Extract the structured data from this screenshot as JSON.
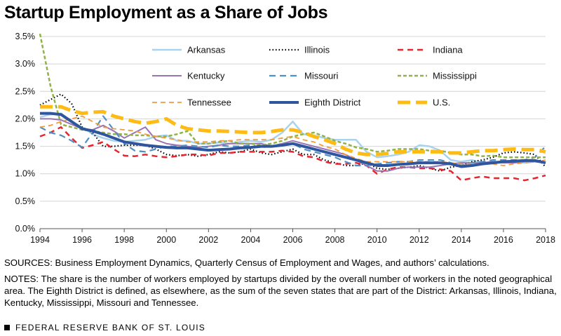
{
  "title": "Startup Employment as a Share of Jobs",
  "sources": "SOURCES: Business Employment Dynamics, Quarterly Census of Employment and Wages, and authors’ calculations.",
  "notes": "NOTES: The share is the number of workers employed by startups divided by the overall number of workers in the noted geographical area. The Eighth District is defined, as elsewhere, as the sum of the seven states that are part of the District: Arkansas, Illinois, Indiana, Kentucky, Mississippi, Missouri and Tennessee.",
  "footer": "FEDERAL RESERVE BANK OF ST. LOUIS",
  "chart_data": {
    "type": "line",
    "title": "Startup Employment as a Share of Jobs",
    "xlim": [
      1994,
      2018
    ],
    "ylim": [
      0,
      3.5
    ],
    "x_ticks": [
      "1994",
      "1996",
      "1998",
      "2000",
      "2002",
      "2004",
      "2006",
      "2008",
      "2010",
      "2012",
      "2014",
      "2016",
      "2018"
    ],
    "y_ticks": [
      "0.0%",
      "0.5%",
      "1.0%",
      "1.5%",
      "2.0%",
      "2.5%",
      "3.0%",
      "3.5%"
    ],
    "legend_position": "top, inside plot, 3 columns",
    "grid": "horizontal",
    "x": [
      1994,
      1994.5,
      1995,
      1995.5,
      1996,
      1996.5,
      1997,
      1997.5,
      1998,
      1998.5,
      1999,
      1999.5,
      2000,
      2000.5,
      2001,
      2001.5,
      2002,
      2002.5,
      2003,
      2003.5,
      2004,
      2004.5,
      2005,
      2005.5,
      2006,
      2006.5,
      2007,
      2007.5,
      2008,
      2008.5,
      2009,
      2009.5,
      2010,
      2010.5,
      2011,
      2011.5,
      2012,
      2012.5,
      2013,
      2013.5,
      2014,
      2014.5,
      2015,
      2015.5,
      2016,
      2016.5,
      2017,
      2017.5,
      2018
    ],
    "series": [
      {
        "name": "Arkansas",
        "color": "#a9d2ec",
        "dash": "solid",
        "width": 2.5,
        "values": [
          2.03,
          2.08,
          2.1,
          1.95,
          1.85,
          1.72,
          1.65,
          1.6,
          1.58,
          1.6,
          1.62,
          1.68,
          1.7,
          1.6,
          1.6,
          1.55,
          1.55,
          1.57,
          1.55,
          1.58,
          1.6,
          1.58,
          1.62,
          1.75,
          1.95,
          1.72,
          1.7,
          1.65,
          1.62,
          1.62,
          1.62,
          1.4,
          1.3,
          1.32,
          1.35,
          1.4,
          1.52,
          1.5,
          1.42,
          1.25,
          1.22,
          1.25,
          1.2,
          1.22,
          1.22,
          1.22,
          1.2,
          1.22,
          1.2
        ]
      },
      {
        "name": "Illinois",
        "color": "#000000",
        "dash": "1.5,3",
        "width": 2.2,
        "values": [
          2.25,
          2.35,
          2.45,
          2.28,
          1.85,
          1.75,
          1.5,
          1.5,
          1.52,
          1.52,
          1.52,
          1.45,
          1.35,
          1.33,
          1.35,
          1.32,
          1.35,
          1.4,
          1.38,
          1.4,
          1.45,
          1.38,
          1.35,
          1.4,
          1.45,
          1.35,
          1.35,
          1.25,
          1.2,
          1.15,
          1.15,
          1.2,
          1.1,
          1.08,
          1.1,
          1.12,
          1.15,
          1.1,
          1.05,
          1.12,
          1.15,
          1.22,
          1.25,
          1.3,
          1.38,
          1.4,
          1.38,
          1.35,
          1.12
        ]
      },
      {
        "name": "Indiana",
        "color": "#e8242e",
        "dash": "8,6",
        "width": 2.5,
        "values": [
          1.68,
          1.75,
          1.85,
          1.65,
          1.47,
          1.52,
          1.58,
          1.45,
          1.33,
          1.32,
          1.35,
          1.32,
          1.3,
          1.32,
          1.35,
          1.35,
          1.33,
          1.38,
          1.38,
          1.4,
          1.4,
          1.4,
          1.4,
          1.42,
          1.4,
          1.32,
          1.3,
          1.22,
          1.18,
          1.18,
          1.2,
          1.15,
          1.0,
          1.08,
          1.12,
          1.12,
          1.1,
          1.1,
          1.08,
          1.05,
          0.88,
          0.92,
          0.95,
          0.92,
          0.92,
          0.92,
          0.88,
          0.92,
          0.97
        ]
      },
      {
        "name": "Kentucky",
        "color": "#9a74b4",
        "dash": "solid",
        "width": 2,
        "values": [
          2.0,
          2.0,
          1.98,
          1.9,
          1.82,
          1.8,
          1.88,
          1.78,
          1.65,
          1.75,
          1.85,
          1.62,
          1.55,
          1.52,
          1.5,
          1.48,
          1.5,
          1.52,
          1.55,
          1.55,
          1.55,
          1.55,
          1.5,
          1.55,
          1.6,
          1.55,
          1.5,
          1.45,
          1.4,
          1.35,
          1.25,
          1.15,
          1.05,
          1.05,
          1.1,
          1.12,
          1.12,
          1.12,
          1.15,
          1.18,
          1.2,
          1.2,
          1.2,
          1.22,
          1.2,
          1.2,
          1.22,
          1.22,
          1.2
        ]
      },
      {
        "name": "Missouri",
        "color": "#4f8fc4",
        "dash": "9,6",
        "width": 2.2,
        "values": [
          1.85,
          1.75,
          1.7,
          1.6,
          1.48,
          1.75,
          2.05,
          1.8,
          1.55,
          1.42,
          1.4,
          1.45,
          1.5,
          1.5,
          1.52,
          1.5,
          1.48,
          1.52,
          1.5,
          1.5,
          1.52,
          1.48,
          1.5,
          1.55,
          1.55,
          1.45,
          1.4,
          1.35,
          1.3,
          1.22,
          1.15,
          1.15,
          1.18,
          1.2,
          1.22,
          1.22,
          1.25,
          1.25,
          1.25,
          1.2,
          1.15,
          1.2,
          1.22,
          1.25,
          1.25,
          1.25,
          1.25,
          1.3,
          1.5
        ]
      },
      {
        "name": "Mississippi",
        "color": "#90b247",
        "dash": "5,3",
        "width": 2.5,
        "values": [
          3.55,
          2.6,
          1.9,
          1.85,
          1.8,
          1.78,
          1.75,
          1.72,
          1.72,
          1.7,
          1.7,
          1.68,
          1.68,
          1.72,
          1.78,
          1.55,
          1.55,
          1.58,
          1.6,
          1.55,
          1.55,
          1.52,
          1.55,
          1.6,
          1.68,
          1.72,
          1.75,
          1.68,
          1.6,
          1.55,
          1.48,
          1.45,
          1.4,
          1.42,
          1.45,
          1.45,
          1.45,
          1.42,
          1.42,
          1.38,
          1.35,
          1.35,
          1.32,
          1.33,
          1.3,
          1.3,
          1.3,
          1.3,
          1.3
        ]
      },
      {
        "name": "Tennessee",
        "color": "#f39a3c",
        "dash": "7,5",
        "width": 1.8,
        "values": [
          1.85,
          1.88,
          1.95,
          2.0,
          2.05,
          1.95,
          1.85,
          1.82,
          1.8,
          1.78,
          1.72,
          1.68,
          1.65,
          1.62,
          1.58,
          1.58,
          1.58,
          1.6,
          1.6,
          1.62,
          1.62,
          1.62,
          1.62,
          1.65,
          1.68,
          1.62,
          1.58,
          1.5,
          1.45,
          1.35,
          1.28,
          1.22,
          1.22,
          1.22,
          1.22,
          1.22,
          1.22,
          1.22,
          1.22,
          1.2,
          1.18,
          1.18,
          1.18,
          1.18,
          1.15,
          1.18,
          1.2,
          1.22,
          1.25
        ]
      },
      {
        "name": "Eighth District",
        "color": "#2f559e",
        "dash": "solid",
        "width": 4,
        "values": [
          2.1,
          2.1,
          2.08,
          1.95,
          1.82,
          1.78,
          1.72,
          1.65,
          1.58,
          1.55,
          1.52,
          1.5,
          1.48,
          1.47,
          1.47,
          1.45,
          1.43,
          1.44,
          1.45,
          1.47,
          1.48,
          1.5,
          1.5,
          1.52,
          1.55,
          1.5,
          1.45,
          1.4,
          1.35,
          1.3,
          1.25,
          1.2,
          1.15,
          1.15,
          1.17,
          1.18,
          1.2,
          1.2,
          1.2,
          1.18,
          1.13,
          1.15,
          1.18,
          1.2,
          1.22,
          1.23,
          1.24,
          1.24,
          1.2
        ]
      },
      {
        "name": "U.S.",
        "color": "#fdbb14",
        "dash": "18,8",
        "width": 5,
        "values": [
          2.22,
          2.22,
          2.22,
          2.15,
          2.1,
          2.12,
          2.13,
          2.05,
          2.0,
          1.95,
          1.92,
          1.95,
          2.0,
          1.88,
          1.82,
          1.8,
          1.78,
          1.78,
          1.77,
          1.76,
          1.75,
          1.75,
          1.77,
          1.8,
          1.8,
          1.75,
          1.68,
          1.62,
          1.55,
          1.45,
          1.38,
          1.35,
          1.35,
          1.37,
          1.4,
          1.4,
          1.4,
          1.4,
          1.4,
          1.38,
          1.38,
          1.4,
          1.42,
          1.42,
          1.44,
          1.45,
          1.44,
          1.44,
          1.4
        ]
      }
    ]
  }
}
